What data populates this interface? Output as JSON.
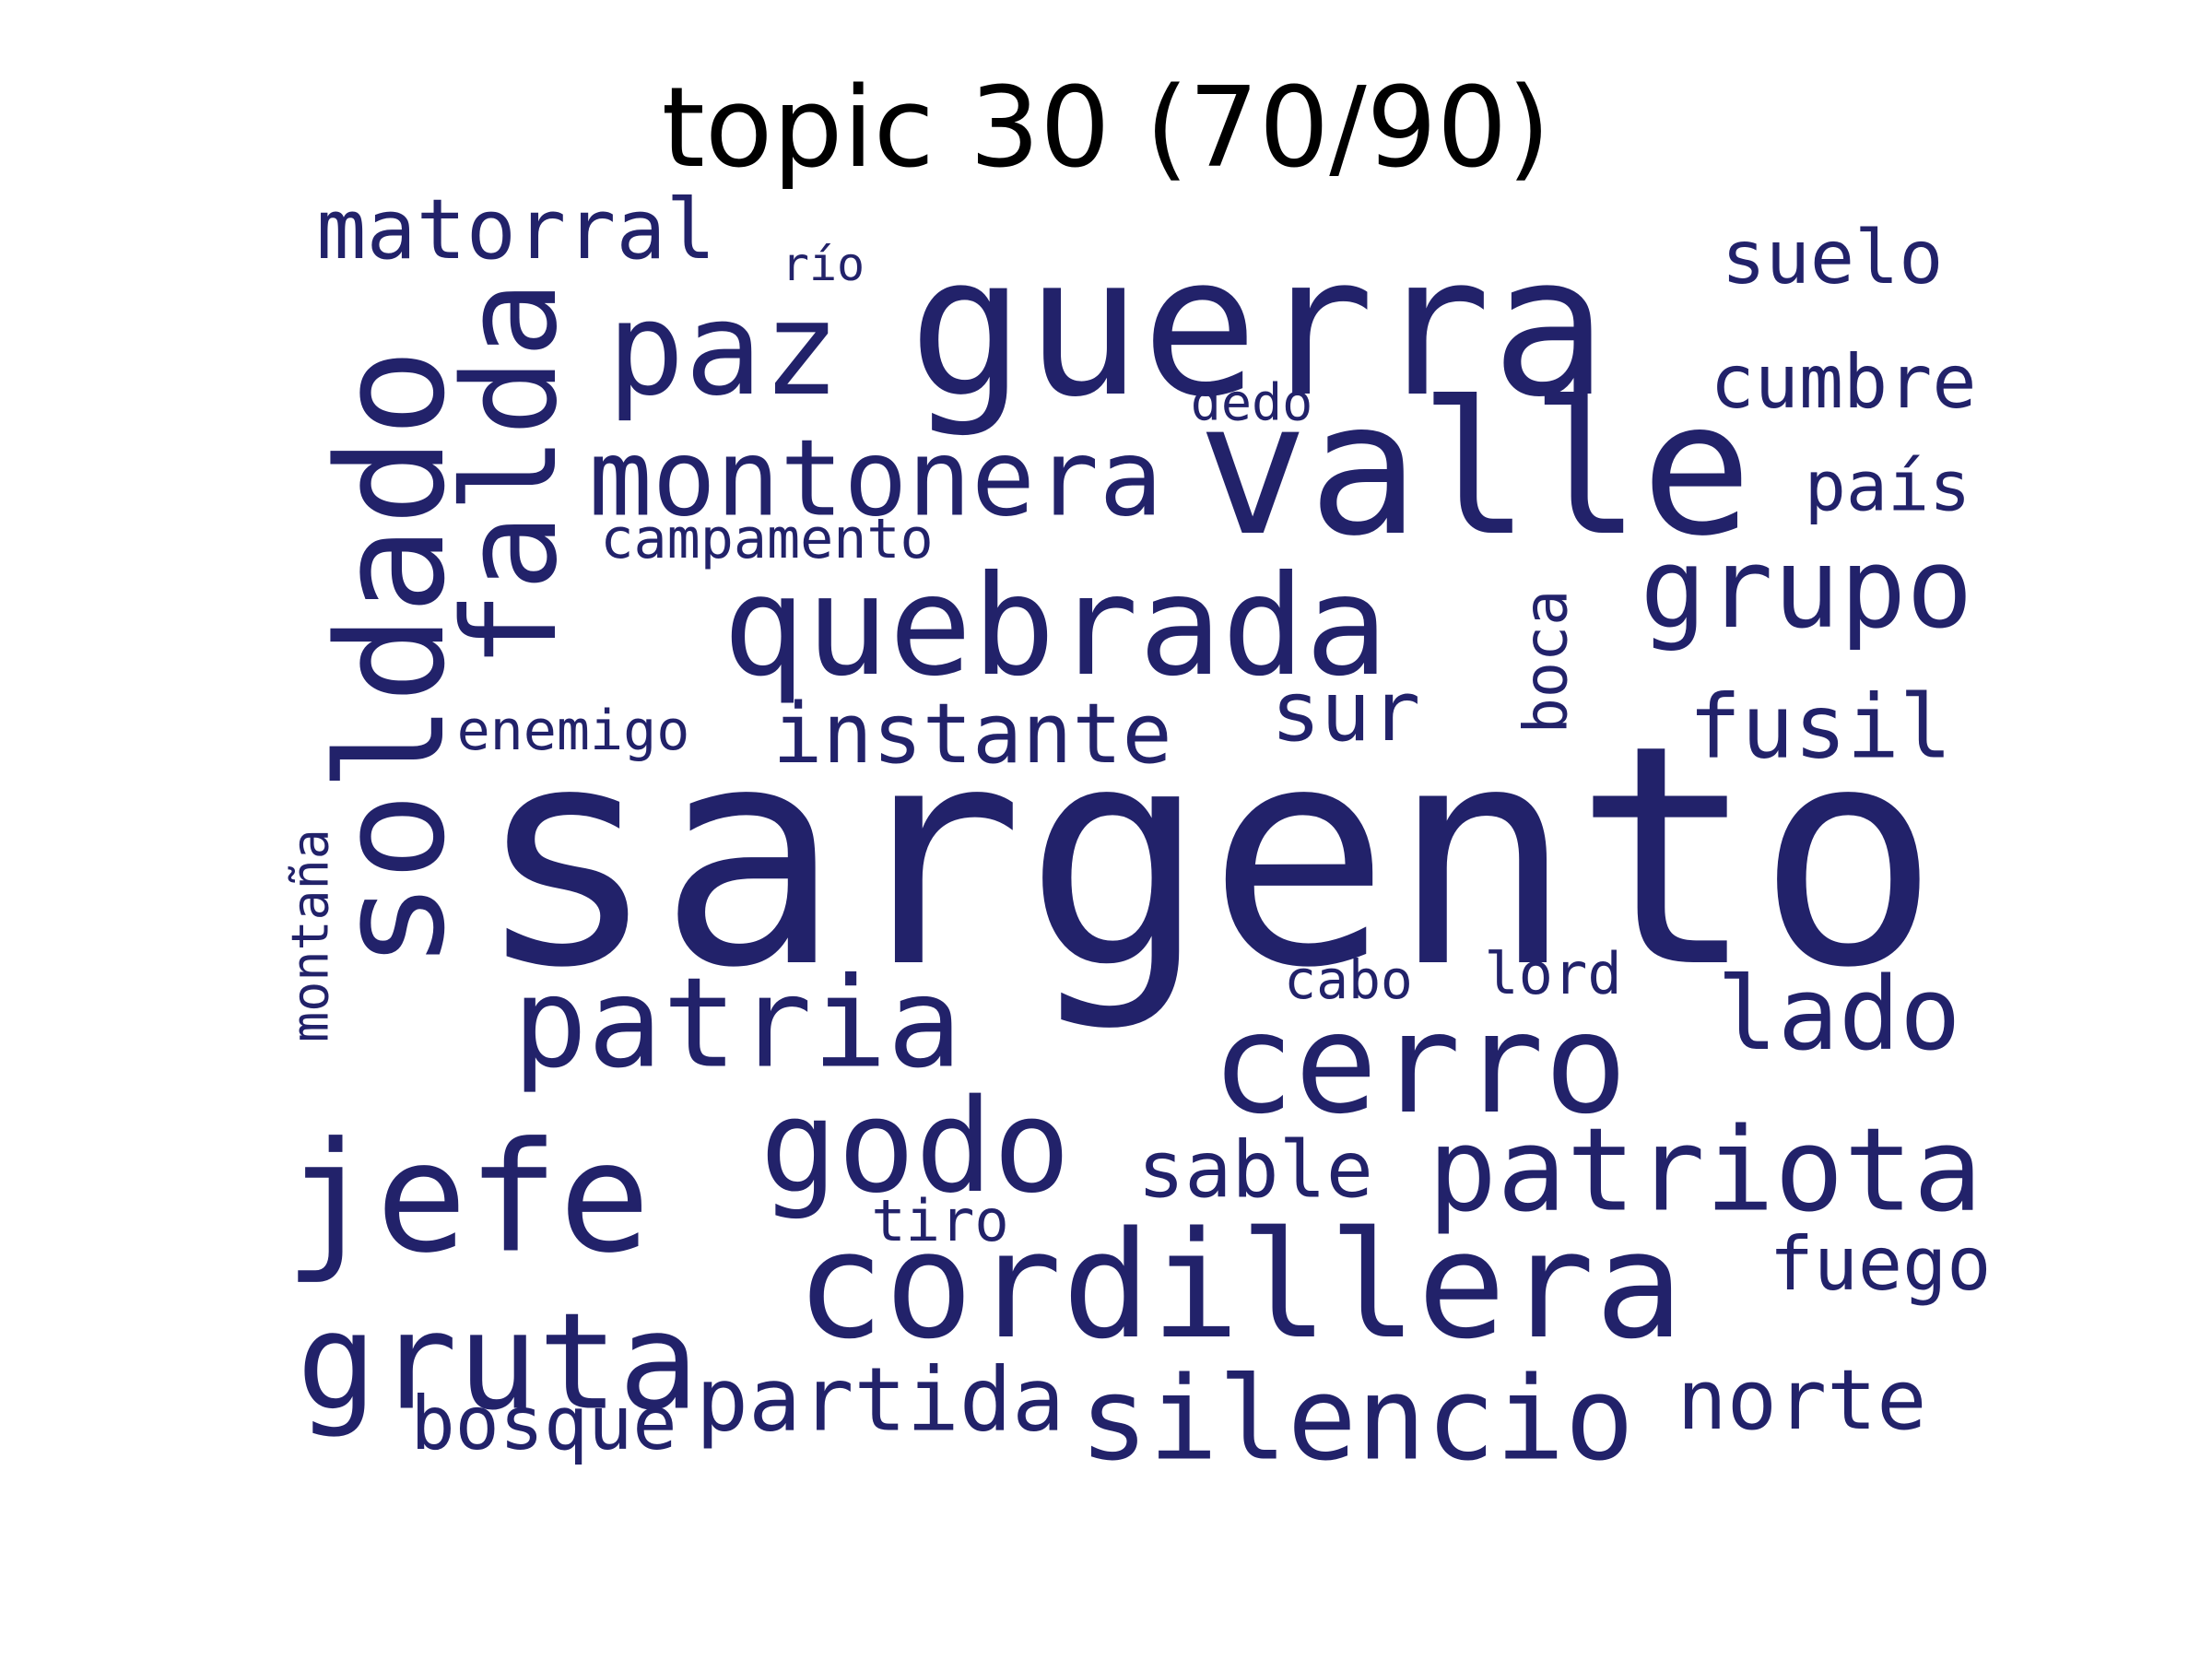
{
  "title": "topic 30 (70/90)",
  "colors": {
    "word": "#22226a",
    "title": "#000000",
    "background": "#ffffff"
  },
  "words": [
    {
      "text": "sargento"
    },
    {
      "text": "guerra"
    },
    {
      "text": "valle"
    },
    {
      "text": "cordillera"
    },
    {
      "text": "quebrada"
    },
    {
      "text": "soldado"
    },
    {
      "text": "falda"
    },
    {
      "text": "paz"
    },
    {
      "text": "montonera"
    },
    {
      "text": "matorral"
    },
    {
      "text": "río"
    },
    {
      "text": "suelo"
    },
    {
      "text": "cumbre"
    },
    {
      "text": "dedo"
    },
    {
      "text": "país"
    },
    {
      "text": "campamento"
    },
    {
      "text": "grupo"
    },
    {
      "text": "boca"
    },
    {
      "text": "sur"
    },
    {
      "text": "instante"
    },
    {
      "text": "fusil"
    },
    {
      "text": "enemigo"
    },
    {
      "text": "montaña"
    },
    {
      "text": "cabo"
    },
    {
      "text": "lord"
    },
    {
      "text": "lado"
    },
    {
      "text": "patria"
    },
    {
      "text": "cerro"
    },
    {
      "text": "jefe"
    },
    {
      "text": "godo"
    },
    {
      "text": "sable"
    },
    {
      "text": "patriota"
    },
    {
      "text": "tiro"
    },
    {
      "text": "fuego"
    },
    {
      "text": "gruta"
    },
    {
      "text": "bosque"
    },
    {
      "text": "partida"
    },
    {
      "text": "silencio"
    },
    {
      "text": "norte"
    }
  ]
}
